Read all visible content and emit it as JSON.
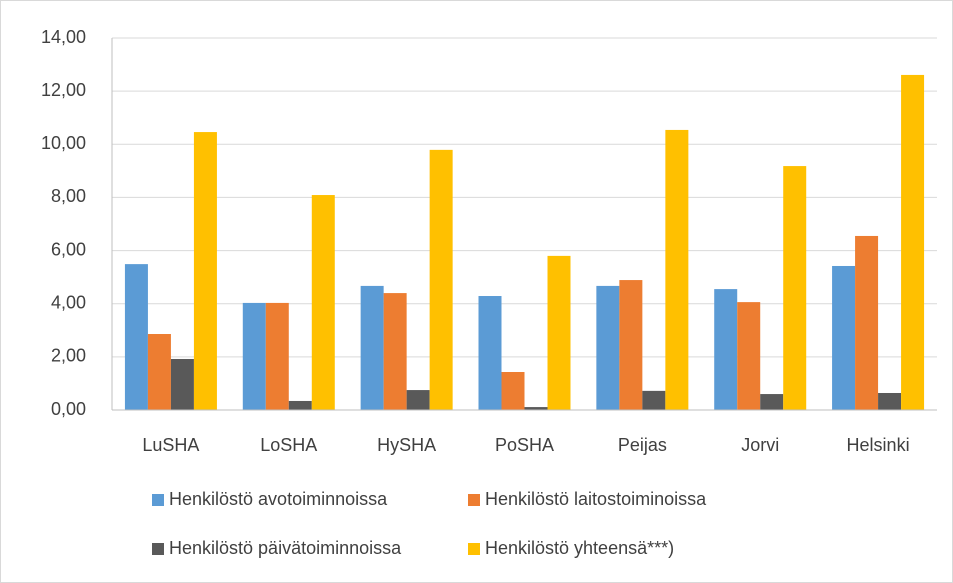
{
  "chart_data": {
    "type": "bar",
    "categories": [
      "LuSHA",
      "LoSHA",
      "HySHA",
      "PoSHA",
      "Peijas",
      "Jorvi",
      "Helsinki"
    ],
    "series": [
      {
        "name": "Henkilöstö avotoiminnoissa",
        "color": "#5b9bd5",
        "values": [
          5.49,
          4.03,
          4.67,
          4.29,
          4.67,
          4.55,
          5.42
        ]
      },
      {
        "name": "Henkilöstö laitostoiminoissa",
        "color": "#ed7d31",
        "values": [
          2.86,
          4.03,
          4.4,
          1.43,
          4.89,
          4.06,
          6.55
        ]
      },
      {
        "name": "Henkilöstö päivätoiminnoissa",
        "color": "#595959",
        "values": [
          1.92,
          0.34,
          0.75,
          0.11,
          0.72,
          0.6,
          0.64
        ]
      },
      {
        "name": "Henkilöstö yhteensä***)",
        "color": "#ffc000",
        "values": [
          10.46,
          8.09,
          9.79,
          5.8,
          10.54,
          9.18,
          12.61
        ]
      }
    ],
    "ylim": [
      0,
      14
    ],
    "yticks": [
      {
        "value": 0,
        "label": "0,00"
      },
      {
        "value": 2,
        "label": "2,00"
      },
      {
        "value": 4,
        "label": "4,00"
      },
      {
        "value": 6,
        "label": "6,00"
      },
      {
        "value": 8,
        "label": "8,00"
      },
      {
        "value": 10,
        "label": "10,00"
      },
      {
        "value": 12,
        "label": "12,00"
      },
      {
        "value": 14,
        "label": "14,00"
      }
    ],
    "grid": true,
    "legend": "bottom"
  }
}
